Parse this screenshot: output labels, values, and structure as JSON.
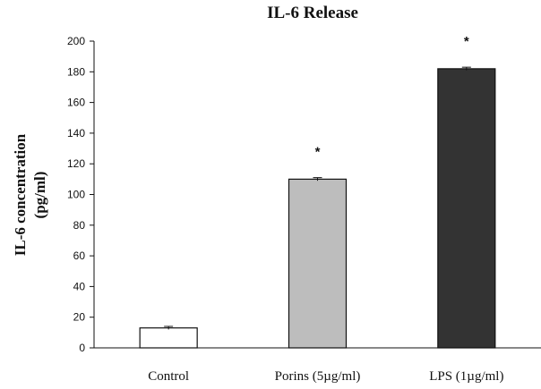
{
  "chart_data": {
    "type": "bar",
    "title": "IL-6 Release",
    "ylabel": [
      "IL-6 concentration",
      "(pg/ml)"
    ],
    "xlabel": "",
    "categories": [
      "Control",
      "Porins (5µg/ml)",
      "LPS (1µg/ml)"
    ],
    "values": [
      13,
      110,
      182
    ],
    "errors": [
      1,
      1,
      1
    ],
    "significance": [
      "",
      "*",
      "*"
    ],
    "bar_colors": [
      "#ffffff",
      "#bdbdbd",
      "#333333"
    ],
    "ylim": [
      0,
      200
    ],
    "yticks": [
      0,
      20,
      40,
      60,
      80,
      100,
      120,
      140,
      160,
      180,
      200
    ],
    "grid": false
  }
}
